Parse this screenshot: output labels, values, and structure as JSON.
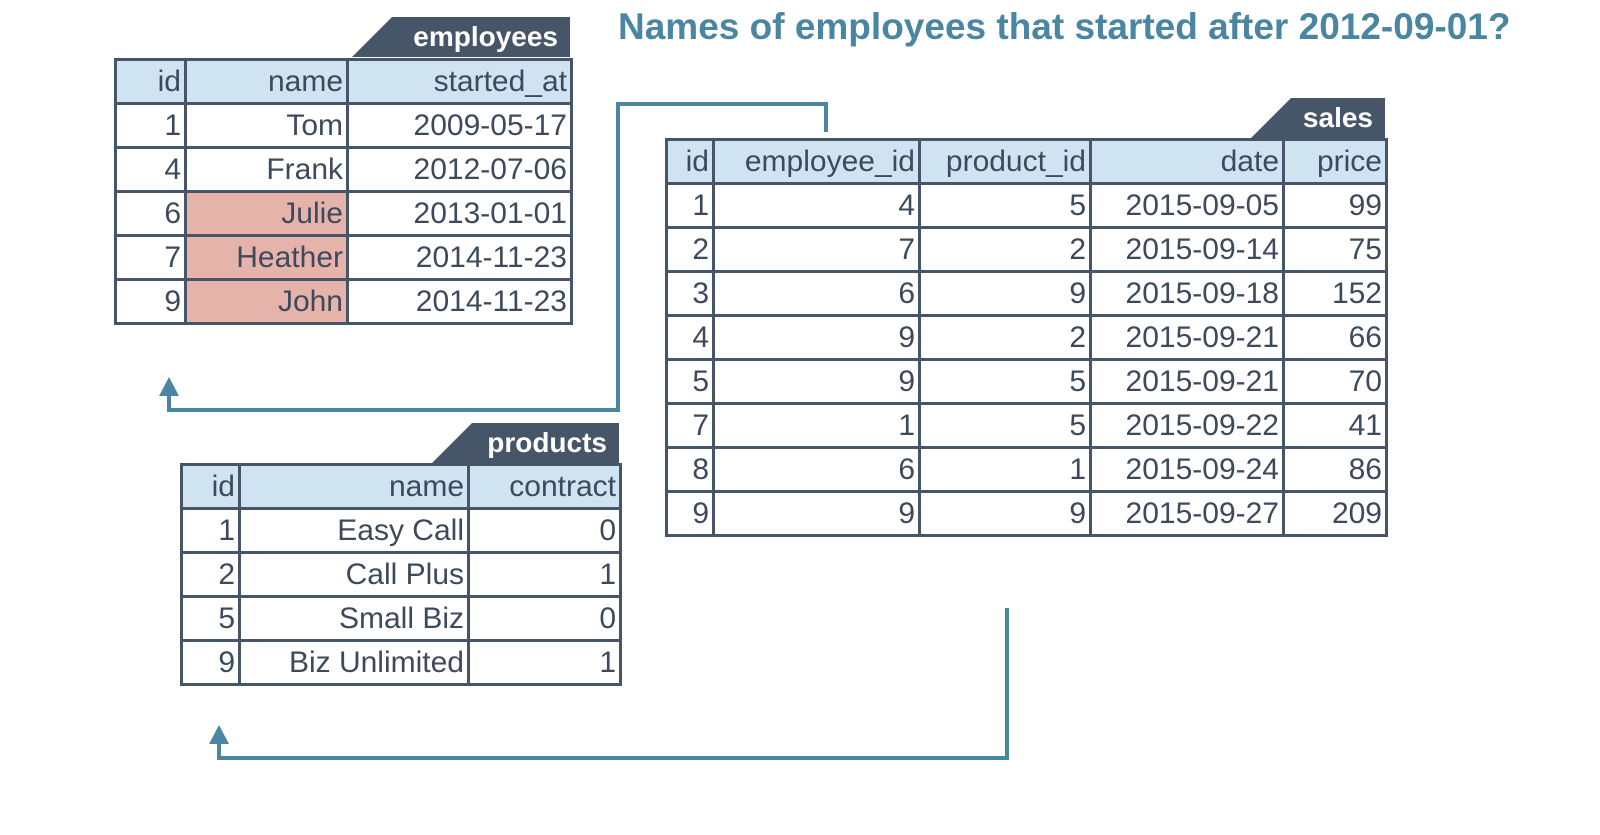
{
  "title": "Names of employees that started after 2012-09-01?",
  "colors": {
    "title": "#4a86a1",
    "header_bg": "#cfe3f1",
    "border": "#475569",
    "tab_bg": "#475569",
    "highlight": "#e6b3ab",
    "arrow": "#4a86a1"
  },
  "employees": {
    "name": "employees",
    "columns": [
      "id",
      "name",
      "started_at"
    ],
    "rows": [
      [
        "1",
        "Tom",
        "2009-05-17"
      ],
      [
        "4",
        "Frank",
        "2012-07-06"
      ],
      [
        "6",
        "Julie",
        "2013-01-01"
      ],
      [
        "7",
        "Heather",
        "2014-11-23"
      ],
      [
        "9",
        "John",
        "2014-11-23"
      ]
    ],
    "highlighted_names": [
      "Julie",
      "Heather",
      "John"
    ]
  },
  "sales": {
    "name": "sales",
    "columns": [
      "id",
      "employee_id",
      "product_id",
      "date",
      "price"
    ],
    "rows": [
      [
        "1",
        "4",
        "5",
        "2015-09-05",
        "99"
      ],
      [
        "2",
        "7",
        "2",
        "2015-09-14",
        "75"
      ],
      [
        "3",
        "6",
        "9",
        "2015-09-18",
        "152"
      ],
      [
        "4",
        "9",
        "2",
        "2015-09-21",
        "66"
      ],
      [
        "5",
        "9",
        "5",
        "2015-09-21",
        "70"
      ],
      [
        "7",
        "1",
        "5",
        "2015-09-22",
        "41"
      ],
      [
        "8",
        "6",
        "1",
        "2015-09-24",
        "86"
      ],
      [
        "9",
        "9",
        "9",
        "2015-09-27",
        "209"
      ]
    ]
  },
  "products": {
    "name": "products",
    "columns": [
      "id",
      "name",
      "contract"
    ],
    "rows": [
      [
        "1",
        "Easy Call",
        "0"
      ],
      [
        "2",
        "Call Plus",
        "1"
      ],
      [
        "5",
        "Small Biz",
        "0"
      ],
      [
        "9",
        "Biz Unlimited",
        "1"
      ]
    ]
  }
}
